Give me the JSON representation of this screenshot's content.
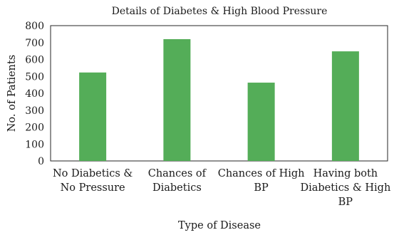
{
  "chart_data": {
    "type": "bar",
    "title": "Details of Diabetes & High Blood Pressure",
    "xlabel": "Type of Disease",
    "ylabel": "No. of Patients",
    "ylim": [
      0,
      800
    ],
    "yticks": [
      0,
      100,
      200,
      300,
      400,
      500,
      600,
      700,
      800
    ],
    "categories": [
      [
        "No Diabetics &",
        "No Pressure"
      ],
      [
        "Chances of",
        "Diabetics"
      ],
      [
        "Chances of High",
        "BP"
      ],
      [
        "Having both",
        "Diabetics & High",
        "BP"
      ]
    ],
    "values": [
      523,
      720,
      463,
      648
    ],
    "grid": false,
    "legend": "none",
    "colors": {
      "bar": "#54ad58",
      "axis": "#262626"
    }
  }
}
